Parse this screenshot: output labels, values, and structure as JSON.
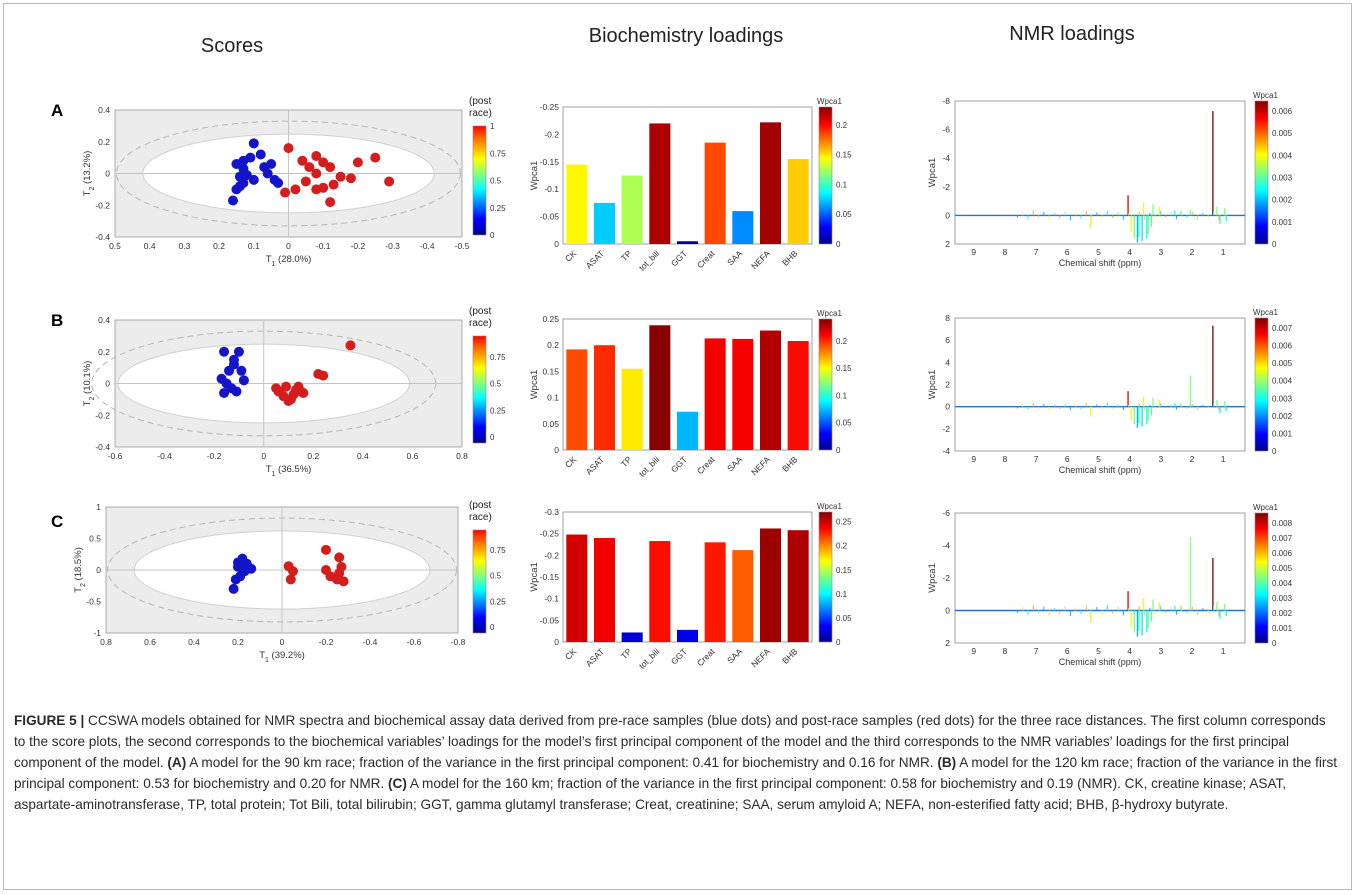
{
  "column_headers": [
    "Scores",
    "Biochemistry loadings",
    "NMR loadings"
  ],
  "panels": [
    {
      "letter": "A",
      "scores": {
        "post_race_label": "(post\nrace)",
        "xlabel": "T1 (28.0%)",
        "xlabel_main": "T",
        "xlabel_sub": "1",
        "xlabel_rest": " (28.0%)",
        "ylabel_main": "T",
        "ylabel_sub": "2",
        "ylabel_rest": " (13.2%)",
        "xticks": [
          "0.5",
          "0.4",
          "0.3",
          "0.2",
          "0.1",
          "0",
          "-0.1",
          "-0.2",
          "-0.3",
          "-0.4",
          "-0.5"
        ],
        "yticks": [
          "0.4",
          "0.2",
          "0",
          "-0.2",
          "-0.4"
        ],
        "cbar_ticks": [
          "1",
          "0.75",
          "0.5",
          "0.25",
          "0"
        ],
        "pre_race": [
          [
            0.16,
            -0.17
          ],
          [
            0.15,
            -0.1
          ],
          [
            0.14,
            -0.08
          ],
          [
            0.13,
            -0.06
          ],
          [
            0.14,
            -0.02
          ],
          [
            0.12,
            -0.01
          ],
          [
            0.13,
            0.03
          ],
          [
            0.15,
            0.06
          ],
          [
            0.13,
            0.08
          ],
          [
            0.11,
            0.1
          ],
          [
            0.1,
            0.19
          ],
          [
            0.08,
            0.12
          ],
          [
            0.07,
            0.04
          ],
          [
            0.06,
            0
          ],
          [
            0.05,
            0.06
          ],
          [
            0.04,
            -0.04
          ],
          [
            0.03,
            -0.06
          ],
          [
            0.1,
            -0.04
          ]
        ],
        "post_race": [
          [
            0.0,
            0.16
          ],
          [
            -0.04,
            0.08
          ],
          [
            -0.06,
            0.04
          ],
          [
            -0.08,
            0.11
          ],
          [
            -0.1,
            0.07
          ],
          [
            -0.12,
            0.04
          ],
          [
            -0.08,
            0.0
          ],
          [
            -0.05,
            -0.05
          ],
          [
            -0.08,
            -0.1
          ],
          [
            -0.1,
            -0.09
          ],
          [
            -0.13,
            -0.07
          ],
          [
            -0.15,
            -0.02
          ],
          [
            -0.18,
            -0.03
          ],
          [
            -0.2,
            0.07
          ],
          [
            -0.25,
            0.1
          ],
          [
            -0.29,
            -0.05
          ],
          [
            -0.02,
            -0.1
          ],
          [
            0.01,
            -0.12
          ],
          [
            -0.12,
            -0.18
          ]
        ]
      },
      "bio": {
        "ylabel": "Wpca1",
        "categories": [
          "CK",
          "ASAT",
          "TP",
          "tot_bili",
          "GGT",
          "Creat",
          "SAA",
          "NEFA",
          "BHB"
        ],
        "values": [
          0.145,
          0.075,
          0.125,
          0.22,
          0.005,
          0.185,
          0.06,
          0.222,
          0.155
        ],
        "yticks": [
          "-0.25",
          "-0.2",
          "-0.15",
          "-0.1",
          "-0.05",
          "0"
        ],
        "ymax": 0.25,
        "cbar_title": "Wpca1",
        "cbar_ticks": [
          "0.2",
          "0.15",
          "0.1",
          "0.05",
          "0"
        ],
        "cbar_max": 0.23
      },
      "nmr": {
        "xlabel": "Chemical shift (ppm)",
        "ylabel": "Wpca1",
        "xticks": [
          "9",
          "8",
          "7",
          "6",
          "5",
          "4",
          "3",
          "2",
          "1"
        ],
        "yticks": [
          "-8",
          "-6",
          "-4",
          "-2",
          "0",
          "2"
        ],
        "ymin": -8,
        "ymax": 2,
        "cbar_title": "Wpca1",
        "cbar_ticks": [
          "0.006",
          "0.005",
          "0.004",
          "0.003",
          "0.002",
          "0.001",
          "0"
        ]
      }
    },
    {
      "letter": "B",
      "scores": {
        "post_race_label": "(post\nrace)",
        "xlabel": "T1 (36.5%)",
        "xlabel_main": "T",
        "xlabel_sub": "1",
        "xlabel_rest": " (36.5%)",
        "ylabel_main": "T",
        "ylabel_sub": "2",
        "ylabel_rest": " (10.1%)",
        "xticks": [
          "-0.6",
          "-0.4",
          "-0.2",
          "0",
          "0.2",
          "0.4",
          "0.6",
          "0.8"
        ],
        "yticks": [
          "0.4",
          "0.2",
          "0",
          "-0.2",
          "-0.4"
        ],
        "cbar_ticks": [
          "0.75",
          "0.5",
          "0.25",
          "0"
        ],
        "pre_race": [
          [
            -0.16,
            0.2
          ],
          [
            -0.12,
            0.15
          ],
          [
            -0.1,
            0.2
          ],
          [
            -0.14,
            0.08
          ],
          [
            -0.17,
            0.03
          ],
          [
            -0.15,
            0.0
          ],
          [
            -0.13,
            -0.03
          ],
          [
            -0.11,
            -0.05
          ],
          [
            -0.08,
            0.02
          ],
          [
            -0.09,
            0.08
          ],
          [
            -0.16,
            -0.06
          ],
          [
            -0.12,
            0.12
          ]
        ],
        "post_race": [
          [
            0.35,
            0.24
          ],
          [
            0.22,
            0.06
          ],
          [
            0.24,
            0.05
          ],
          [
            0.06,
            -0.05
          ],
          [
            0.08,
            -0.08
          ],
          [
            0.1,
            -0.11
          ],
          [
            0.12,
            -0.07
          ],
          [
            0.14,
            -0.02
          ],
          [
            0.15,
            -0.05
          ],
          [
            0.13,
            -0.04
          ],
          [
            0.09,
            -0.02
          ],
          [
            0.05,
            -0.03
          ],
          [
            0.11,
            -0.1
          ],
          [
            0.16,
            -0.06
          ]
        ]
      },
      "bio": {
        "ylabel": "Wpca1",
        "categories": [
          "CK",
          "ASAT",
          "TP",
          "tot_bili",
          "GGT",
          "Creat",
          "SAA",
          "NEFA",
          "BHB"
        ],
        "values": [
          0.192,
          0.2,
          0.155,
          0.238,
          0.073,
          0.213,
          0.212,
          0.228,
          0.208
        ],
        "yticks": [
          "0.25",
          "0.2",
          "0.15",
          "0.1",
          "0.05",
          "0"
        ],
        "ymax": 0.25,
        "cbar_title": "Wpca1",
        "cbar_ticks": [
          "0.2",
          "0.15",
          "0.1",
          "0.05",
          "0"
        ],
        "cbar_max": 0.24
      },
      "nmr": {
        "xlabel": "Chemical shift (ppm)",
        "ylabel": "Wpca1",
        "xticks": [
          "9",
          "8",
          "7",
          "6",
          "5",
          "4",
          "3",
          "2",
          "1"
        ],
        "yticks": [
          "8",
          "6",
          "4",
          "2",
          "0",
          "-2",
          "-4"
        ],
        "ymin": -4,
        "ymax": 8,
        "cbar_title": "Wpca1",
        "cbar_ticks": [
          "0.007",
          "0.006",
          "0.005",
          "0.004",
          "0.003",
          "0.002",
          "0.001",
          "0"
        ]
      }
    },
    {
      "letter": "C",
      "scores": {
        "post_race_label": "(post\nrace)",
        "xlabel": "T1 (39.2%)",
        "xlabel_main": "T",
        "xlabel_sub": "1",
        "xlabel_rest": " (39.2%)",
        "ylabel_main": "T",
        "ylabel_sub": "2",
        "ylabel_rest": " (18.5%)",
        "xticks": [
          "0.8",
          "0.6",
          "0.4",
          "0.2",
          "0",
          "-0.2",
          "-0.4",
          "-0.6",
          "-0.8"
        ],
        "yticks": [
          "1",
          "0.5",
          "0",
          "-0.5",
          "-1"
        ],
        "cbar_ticks": [
          "0.75",
          "0.5",
          "0.25",
          "0"
        ],
        "pre_race": [
          [
            0.22,
            -0.3
          ],
          [
            0.21,
            -0.15
          ],
          [
            0.19,
            -0.1
          ],
          [
            0.2,
            0.05
          ],
          [
            0.18,
            0.18
          ],
          [
            0.16,
            0.1
          ],
          [
            0.14,
            0.02
          ],
          [
            0.17,
            -0.02
          ],
          [
            0.2,
            0.12
          ]
        ],
        "post_race": [
          [
            -0.2,
            0.32
          ],
          [
            -0.26,
            0.2
          ],
          [
            -0.27,
            0.05
          ],
          [
            -0.28,
            -0.18
          ],
          [
            -0.25,
            -0.15
          ],
          [
            -0.22,
            -0.1
          ],
          [
            -0.2,
            0.0
          ],
          [
            -0.03,
            0.06
          ],
          [
            -0.05,
            -0.02
          ],
          [
            -0.04,
            -0.15
          ],
          [
            -0.26,
            -0.05
          ]
        ]
      },
      "bio": {
        "ylabel": "Wpca1",
        "categories": [
          "CK",
          "ASAT",
          "TP",
          "tot_bili",
          "GGT",
          "Creat",
          "SAA",
          "NEFA",
          "BHB"
        ],
        "values": [
          0.248,
          0.24,
          0.022,
          0.233,
          0.028,
          0.23,
          0.212,
          0.262,
          0.258
        ],
        "yticks": [
          "-0.3",
          "-0.25",
          "-0.2",
          "-0.15",
          "-0.1",
          "-0.05",
          "0"
        ],
        "ymax": 0.3,
        "cbar_title": "Wpca1",
        "cbar_ticks": [
          "0.25",
          "0.2",
          "0.15",
          "0.1",
          "0.05",
          "0"
        ],
        "cbar_max": 0.27
      },
      "nmr": {
        "xlabel": "Chemical shift (ppm)",
        "ylabel": "Wpca1",
        "xticks": [
          "9",
          "8",
          "7",
          "6",
          "5",
          "4",
          "3",
          "2",
          "1"
        ],
        "yticks": [
          "-6",
          "-4",
          "-2",
          "0",
          "2"
        ],
        "ymin": -6,
        "ymax": 2,
        "cbar_title": "Wpca1",
        "cbar_ticks": [
          "0.008",
          "0.007",
          "0.006",
          "0.005",
          "0.004",
          "0.003",
          "0.002",
          "0.001",
          "0"
        ]
      }
    }
  ],
  "caption": {
    "figure_label": "FIGURE 5 |",
    "text1": " CCSWA models obtained for NMR spectra and biochemical assay data derived from pre-race samples (blue dots) and post-race samples (red dots) for the three race distances. The first column corresponds to the score plots, the second corresponds to the biochemical variables’ loadings for the model’s first principal component of the model and the third corresponds to the NMR variables’ loadings for the first principal component of the model. ",
    "a_label": "(A)",
    "text_a": " A model for the 90 km race; fraction of the variance in the first principal component: 0.41 for biochemistry and 0.16 for NMR. ",
    "b_label": "(B)",
    "text_b": " A model for the 120 km race; fraction of the variance in the first principal component: 0.53 for biochemistry and 0.20 for NMR. ",
    "c_label": "(C)",
    "text_c": " A model for the 160 km; fraction of the variance in the first principal component: 0.58 for biochemistry and 0.19 (NMR). CK, creatine kinase; ASAT, aspartate-aminotransferase, TP, total protein; Tot Bili, total bilirubin; GGT, gamma glutamyl transferase; Creat, creatinine; SAA, serum amyloid A; NEFA, non-esterified fatty acid; BHB, β-hydroxy butyrate."
  },
  "colors": {
    "pre_race_dot": "#1414c8",
    "post_race_dot": "#d41e1e",
    "ellipse_fill": "#ffffff",
    "plot_bg": "#ececec",
    "baseline": "#2a6fd6"
  }
}
